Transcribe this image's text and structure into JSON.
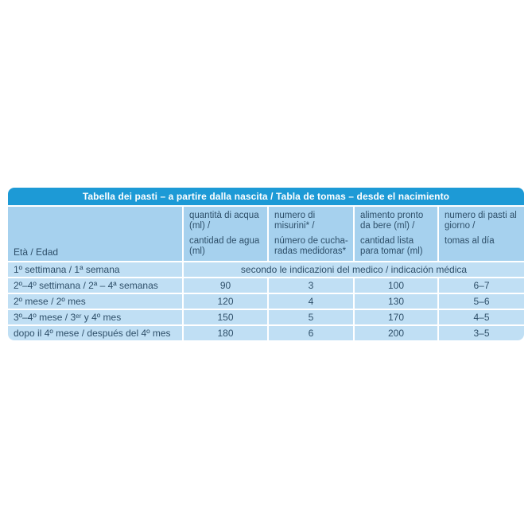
{
  "table": {
    "title": "Tabella dei pasti – a partire dalla nascita / Tabla de tomas – desde el nacimiento",
    "age_header": "Età / Edad",
    "colors": {
      "title_bar_blue": "#1d9ad6",
      "header_row_blue": "#a6d1ee",
      "data_row_blue": "#c0dff4",
      "text_dark_blue": "#2e4f69",
      "title_text": "#ffffff"
    },
    "columns": [
      {
        "it": "quantità di acqua (ml) /",
        "es": "cantidad de agua (ml)"
      },
      {
        "it": "numero di misurini* /",
        "es": "número de cucha-radas medidoras*"
      },
      {
        "it": "alimento pronto da bere (ml) /",
        "es": "cantidad lista para tomar (ml)"
      },
      {
        "it": "numero di pasti al giorno /",
        "es": "tomas al día"
      }
    ],
    "note_row": {
      "label": "1º settimana / 1ª semana",
      "note": "secondo le indicazioni del medico / indicación médica"
    },
    "rows": [
      {
        "label": "2º–4º settimana / 2ª – 4ª semanas",
        "water": "90",
        "scoops": "3",
        "ready": "100",
        "meals": "6–7"
      },
      {
        "label": "2º mese / 2º mes",
        "water": "120",
        "scoops": "4",
        "ready": "130",
        "meals": "5–6"
      },
      {
        "label": "3º–4º mese / 3ᵉʳ y 4º mes",
        "water": "150",
        "scoops": "5",
        "ready": "170",
        "meals": "4–5"
      },
      {
        "label": "dopo il 4º mese / después del 4º mes",
        "water": "180",
        "scoops": "6",
        "ready": "200",
        "meals": "3–5"
      }
    ]
  }
}
